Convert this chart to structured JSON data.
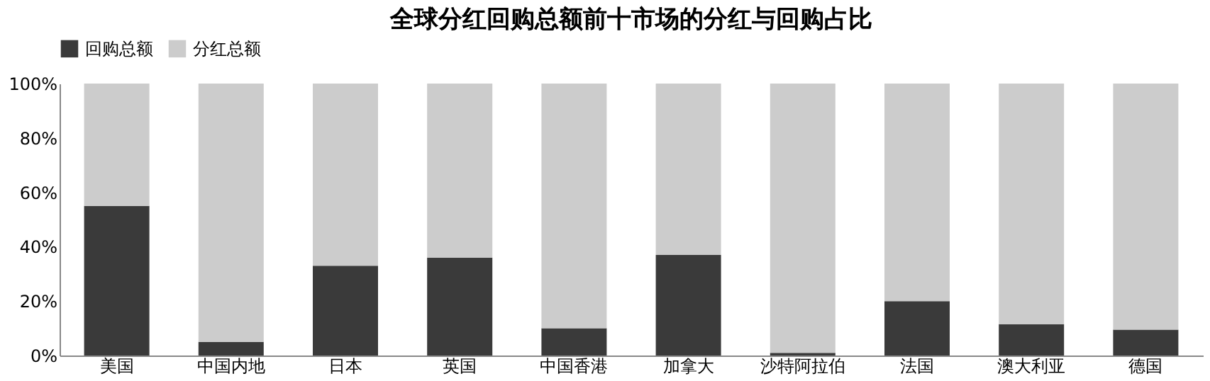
{
  "chart_data": {
    "type": "bar",
    "title": "全球分红回购总额前十市场的分红与回购占比",
    "stacked": true,
    "categories": [
      "美国",
      "中国内地",
      "日本",
      "英国",
      "中国香港",
      "加拿大",
      "沙特阿拉伯",
      "法国",
      "澳大利亚",
      "德国"
    ],
    "series": [
      {
        "name": "回购总额",
        "color": "#3a3a3a",
        "values": [
          55,
          5,
          33,
          36,
          10,
          37,
          1,
          20,
          11.5,
          9.5
        ]
      },
      {
        "name": "分红总额",
        "color": "#cccccc",
        "values": [
          45,
          95,
          67,
          64,
          90,
          63,
          99,
          80,
          88.5,
          90.5
        ]
      }
    ],
    "ylim": [
      0,
      100
    ],
    "yticks": [
      {
        "value": 0,
        "label": "0%"
      },
      {
        "value": 20,
        "label": "20%"
      },
      {
        "value": 40,
        "label": "40%"
      },
      {
        "value": 60,
        "label": "60%"
      },
      {
        "value": 80,
        "label": "80%"
      },
      {
        "value": 100,
        "label": "100%"
      }
    ],
    "grid": false,
    "legend": "top"
  }
}
